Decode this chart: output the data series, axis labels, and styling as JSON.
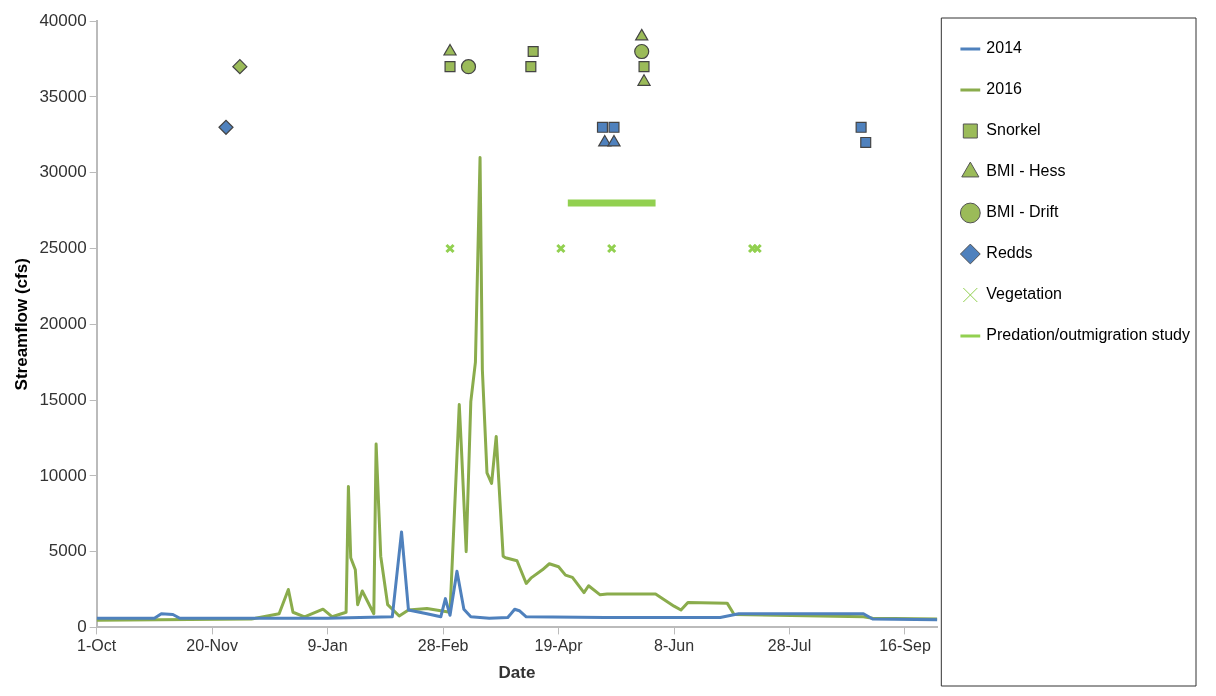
{
  "chart_data": {
    "type": "line",
    "xlabel": "Date",
    "ylabel": "Streamflow (cfs)",
    "xlim": [
      "2014-10-01",
      "2015-09-30"
    ],
    "ylim": [
      0,
      40000
    ],
    "xticks": [
      {
        "value": "2014-10-01",
        "label": "1-Oct"
      },
      {
        "value": "2014-11-20",
        "label": "20-Nov"
      },
      {
        "value": "2015-01-09",
        "label": "9-Jan"
      },
      {
        "value": "2015-02-28",
        "label": "28-Feb"
      },
      {
        "value": "2015-04-19",
        "label": "19-Apr"
      },
      {
        "value": "2015-06-08",
        "label": "8-Jun"
      },
      {
        "value": "2015-07-28",
        "label": "28-Jul"
      },
      {
        "value": "2015-09-16",
        "label": "16-Sep"
      }
    ],
    "yticks": [
      0,
      5000,
      10000,
      15000,
      20000,
      25000,
      30000,
      35000,
      40000
    ],
    "grid": false,
    "legend": "top right",
    "series": [
      {
        "name": "2014",
        "marker": "none",
        "color": "#4f81bd",
        "x": [
          "2014-10-01",
          "2014-10-26",
          "2014-10-29",
          "2014-11-03",
          "2014-11-06",
          "2014-11-30",
          "2015-01-09",
          "2015-02-06",
          "2015-02-10",
          "2015-02-13",
          "2015-02-21",
          "2015-02-27",
          "2015-03-01",
          "2015-03-03",
          "2015-03-06",
          "2015-03-09",
          "2015-03-12",
          "2015-03-20",
          "2015-03-28",
          "2015-03-31",
          "2015-04-02",
          "2015-04-05",
          "2015-05-09",
          "2015-06-28",
          "2015-07-06",
          "2015-07-28",
          "2015-08-29",
          "2015-09-02",
          "2015-09-30"
        ],
        "values": [
          600,
          600,
          900,
          850,
          600,
          600,
          600,
          700,
          6300,
          1150,
          900,
          700,
          1900,
          800,
          3700,
          1200,
          700,
          600,
          650,
          1200,
          1100,
          700,
          650,
          650,
          900,
          900,
          900,
          550,
          500
        ]
      },
      {
        "name": "2016",
        "marker": "none",
        "color": "#8aac4c",
        "x": [
          "2014-10-01",
          "2014-12-07",
          "2014-12-19",
          "2014-12-23",
          "2014-12-25",
          "2014-12-30",
          "2015-01-07",
          "2015-01-11",
          "2015-01-17",
          "2015-01-18",
          "2015-01-19",
          "2015-01-21",
          "2015-01-22",
          "2015-01-24",
          "2015-01-29",
          "2015-01-30",
          "2015-02-01",
          "2015-02-04",
          "2015-02-09",
          "2015-02-13",
          "2015-02-21",
          "2015-03-03",
          "2015-03-07",
          "2015-03-08",
          "2015-03-10",
          "2015-03-12",
          "2015-03-14",
          "2015-03-16",
          "2015-03-17",
          "2015-03-19",
          "2015-03-21",
          "2015-03-23",
          "2015-03-26",
          "2015-03-27",
          "2015-04-01",
          "2015-04-05",
          "2015-04-07",
          "2015-04-12",
          "2015-04-15",
          "2015-04-19",
          "2015-04-22",
          "2015-04-25",
          "2015-04-30",
          "2015-05-02",
          "2015-05-07",
          "2015-05-10",
          "2015-05-31",
          "2015-06-08",
          "2015-06-11",
          "2015-06-14",
          "2015-07-01",
          "2015-07-04",
          "2015-08-29",
          "2015-09-02",
          "2015-09-30"
        ],
        "values": [
          480,
          550,
          900,
          2500,
          1000,
          700,
          1200,
          700,
          1000,
          9300,
          4600,
          3800,
          1500,
          2400,
          900,
          12100,
          4700,
          1500,
          750,
          1150,
          1250,
          1000,
          14700,
          11600,
          5000,
          14900,
          17500,
          31000,
          17000,
          10200,
          9500,
          12600,
          4700,
          4600,
          4400,
          2900,
          3250,
          3800,
          4200,
          4000,
          3450,
          3300,
          2300,
          2750,
          2150,
          2200,
          2200,
          1400,
          1150,
          1650,
          1600,
          850,
          700,
          600,
          550
        ]
      },
      {
        "name": "Snorkel",
        "type": "scatter",
        "marker": "square",
        "x": [
          "2015-03-03",
          "2015-04-07",
          "2015-04-08",
          "2015-05-08",
          "2015-05-13",
          "2015-05-26",
          "2015-08-28",
          "2015-08-30"
        ],
        "values": [
          37000,
          37000,
          38000,
          33000,
          33000,
          37000,
          33000,
          32000
        ],
        "colors": [
          "#9bbb59",
          "#9bbb59",
          "#9bbb59",
          "#4f81bd",
          "#4f81bd",
          "#9bbb59",
          "#4f81bd",
          "#4f81bd"
        ]
      },
      {
        "name": "BMI - Hess",
        "type": "scatter",
        "marker": "triangle",
        "x": [
          "2015-03-03",
          "2015-05-09",
          "2015-05-13",
          "2015-05-25",
          "2015-05-26"
        ],
        "values": [
          38000,
          32000,
          32000,
          39000,
          36000
        ],
        "colors": [
          "#9bbb59",
          "#4f81bd",
          "#4f81bd",
          "#9bbb59",
          "#9bbb59"
        ]
      },
      {
        "name": "BMI - Drift",
        "type": "scatter",
        "marker": "circle",
        "x": [
          "2015-03-11",
          "2015-05-25"
        ],
        "values": [
          37000,
          38000
        ],
        "colors": [
          "#9bbb59",
          "#9bbb59"
        ]
      },
      {
        "name": "Redds",
        "type": "scatter",
        "marker": "diamond",
        "x": [
          "2014-11-26",
          "2014-12-02"
        ],
        "values": [
          33000,
          37000
        ],
        "colors": [
          "#4f81bd",
          "#9bbb59"
        ]
      },
      {
        "name": "Vegetation",
        "type": "scatter",
        "marker": "cross",
        "color": "#92d050",
        "x": [
          "2015-03-03",
          "2015-04-20",
          "2015-05-12",
          "2015-07-12",
          "2015-07-14"
        ],
        "values": [
          25000,
          25000,
          25000,
          25000,
          25000
        ]
      },
      {
        "name": "Predation/outmigration study",
        "marker": "none",
        "color": "#92d050",
        "x": [
          "2015-04-23",
          "2015-05-31"
        ],
        "values": [
          28000,
          28000
        ]
      }
    ]
  }
}
